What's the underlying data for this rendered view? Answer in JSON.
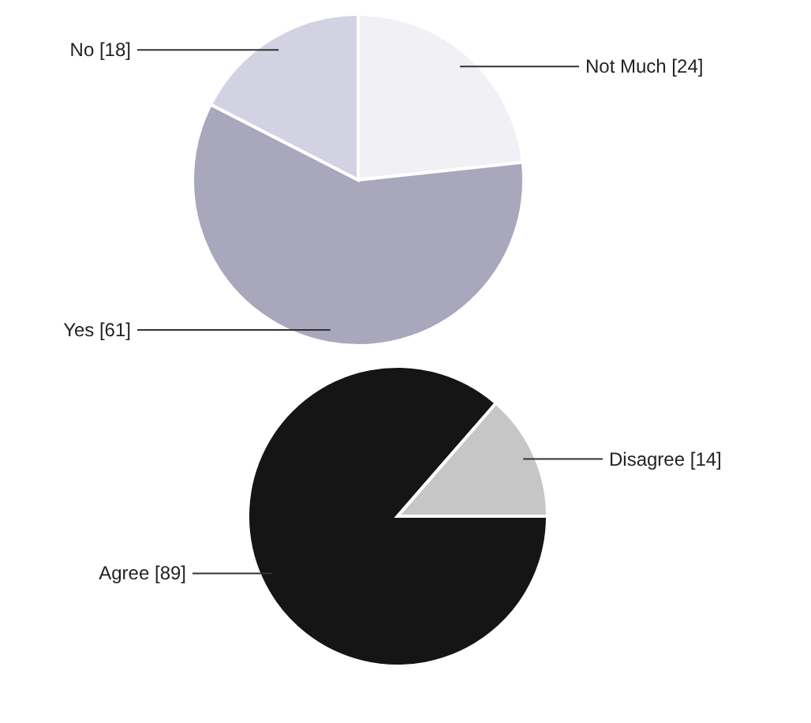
{
  "chart_data": [
    {
      "type": "pie",
      "categories": [
        "Not Much",
        "Yes",
        "No"
      ],
      "values": [
        24,
        61,
        18
      ],
      "value_labels": [
        "[24]",
        "[61]",
        "[18]"
      ],
      "colors": [
        "#f1f1f5",
        "#a9a7bb",
        "#d3d2e2"
      ],
      "legend": false
    },
    {
      "type": "pie",
      "categories": [
        "Agree",
        "Disagree"
      ],
      "values": [
        89,
        14
      ],
      "value_labels": [
        "[89]",
        "[14]"
      ],
      "colors": [
        "#151515",
        "#c6c6c6"
      ],
      "legend": false
    }
  ]
}
